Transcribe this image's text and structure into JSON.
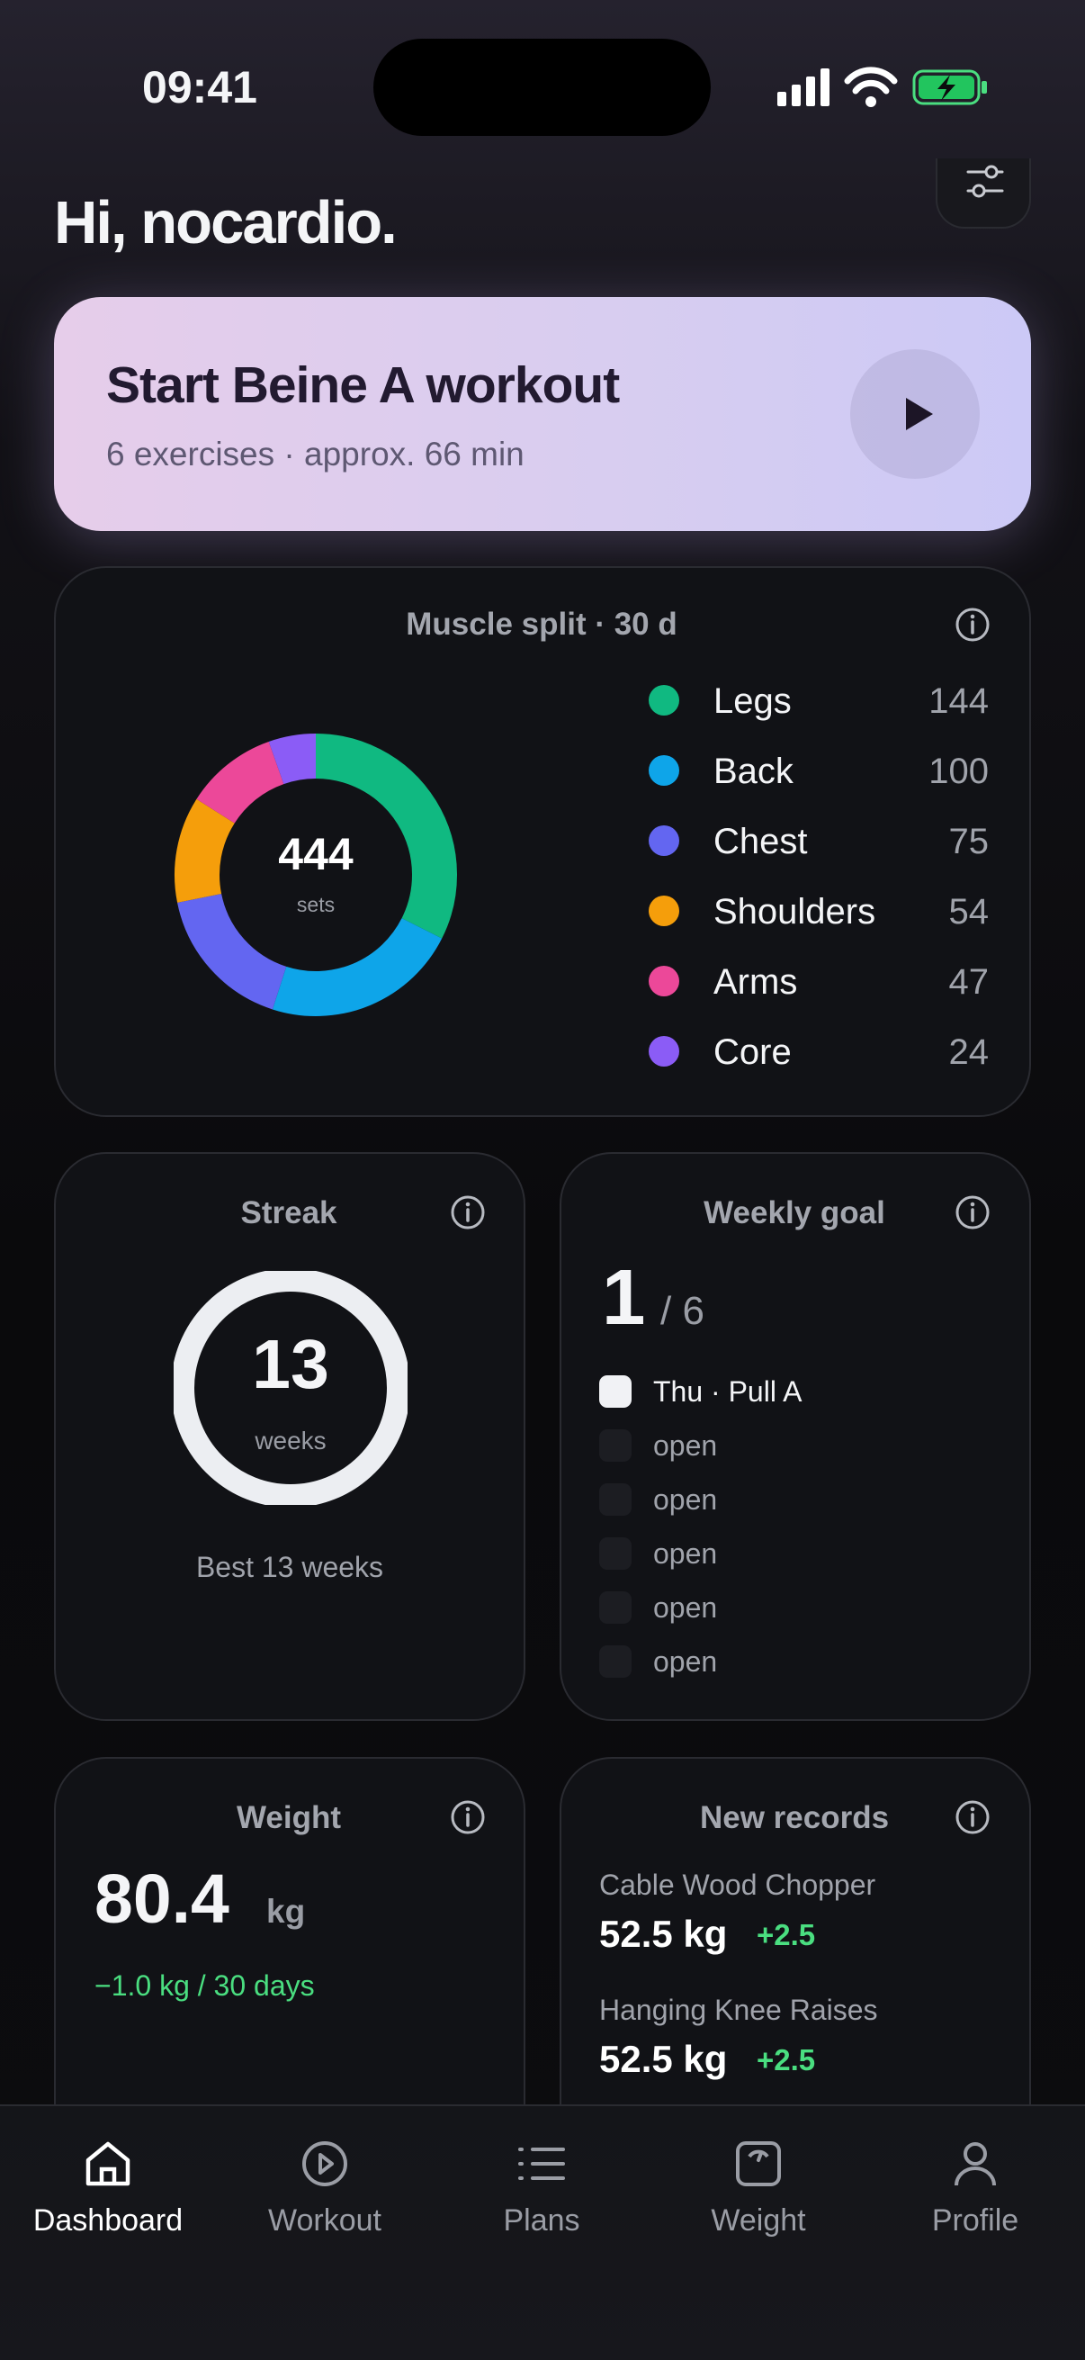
{
  "status_bar": {
    "time": "09:41"
  },
  "header": {
    "greeting": "Hi, nocardio."
  },
  "start_card": {
    "title": "Start Beine A workout",
    "subtitle": "6 exercises · approx. 66 min"
  },
  "muscle_split": {
    "title": "Muscle split · 30 d",
    "total": 444,
    "total_label": "sets",
    "items": [
      {
        "name": "Legs",
        "value": 144,
        "color": "#10b981"
      },
      {
        "name": "Back",
        "value": 100,
        "color": "#0ea5e9"
      },
      {
        "name": "Chest",
        "value": 75,
        "color": "#6366f1"
      },
      {
        "name": "Shoulders",
        "value": 54,
        "color": "#f59e0b"
      },
      {
        "name": "Arms",
        "value": 47,
        "color": "#ec4899"
      },
      {
        "name": "Core",
        "value": 24,
        "color": "#8b5cf6"
      }
    ]
  },
  "streak": {
    "title": "Streak",
    "value": 13,
    "unit": "weeks",
    "best": "Best 13 weeks"
  },
  "weekly_goal": {
    "title": "Weekly goal",
    "done": 1,
    "target": "/ 6",
    "items": [
      {
        "label": "Thu · Pull A",
        "checked": true
      },
      {
        "label": "open",
        "checked": false
      },
      {
        "label": "open",
        "checked": false
      },
      {
        "label": "open",
        "checked": false
      },
      {
        "label": "open",
        "checked": false
      },
      {
        "label": "open",
        "checked": false
      }
    ]
  },
  "weight": {
    "title": "Weight",
    "value": 80.4,
    "unit": "kg",
    "change": "−1.0 kg / 30 days"
  },
  "new_records": {
    "title": "New records",
    "items": [
      {
        "exercise": "Cable Wood Chopper",
        "value": "52.5 kg",
        "delta": "+2.5"
      },
      {
        "exercise": "Hanging Knee Raises",
        "value": "52.5 kg",
        "delta": "+2.5"
      }
    ]
  },
  "tab_bar": {
    "tabs": [
      "Dashboard",
      "Workout",
      "Plans",
      "Weight",
      "Profile"
    ]
  }
}
